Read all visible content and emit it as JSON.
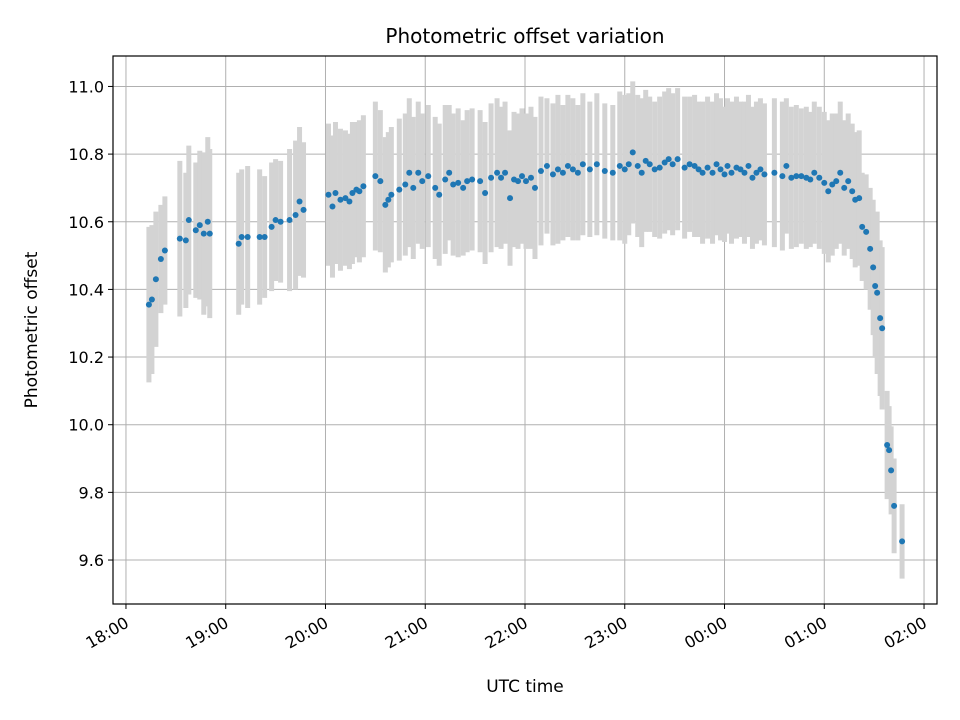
{
  "chart_data": {
    "type": "scatter",
    "title": "Photometric offset variation",
    "xlabel": "UTC time",
    "ylabel": "Photometric offset",
    "x_unit": "hours since 18:00 UTC",
    "xlim": [
      -0.13,
      8.13
    ],
    "ylim": [
      9.47,
      11.09
    ],
    "grid": true,
    "x_ticks": [
      {
        "value": 0,
        "label": "18:00"
      },
      {
        "value": 1,
        "label": "19:00"
      },
      {
        "value": 2,
        "label": "20:00"
      },
      {
        "value": 3,
        "label": "21:00"
      },
      {
        "value": 4,
        "label": "22:00"
      },
      {
        "value": 5,
        "label": "23:00"
      },
      {
        "value": 6,
        "label": "00:00"
      },
      {
        "value": 7,
        "label": "01:00"
      },
      {
        "value": 8,
        "label": "02:00"
      }
    ],
    "y_ticks": [
      {
        "value": 9.6,
        "label": "9.6"
      },
      {
        "value": 9.8,
        "label": "9.8"
      },
      {
        "value": 10.0,
        "label": "10.0"
      },
      {
        "value": 10.2,
        "label": "10.2"
      },
      {
        "value": 10.4,
        "label": "10.4"
      },
      {
        "value": 10.6,
        "label": "10.6"
      },
      {
        "value": 10.8,
        "label": "10.8"
      },
      {
        "value": 11.0,
        "label": "11.0"
      }
    ],
    "colors": {
      "points": "#1f77b4",
      "error_bars": "#d3d3d3",
      "grid": "#b0b0b0"
    },
    "points": [
      [
        0.23,
        10.355,
        0.23
      ],
      [
        0.26,
        10.37,
        0.22
      ],
      [
        0.3,
        10.43,
        0.2
      ],
      [
        0.35,
        10.49,
        0.16
      ],
      [
        0.39,
        10.515,
        0.16
      ],
      [
        0.54,
        10.55,
        0.23
      ],
      [
        0.6,
        10.545,
        0.2
      ],
      [
        0.63,
        10.605,
        0.22
      ],
      [
        0.7,
        10.575,
        0.2
      ],
      [
        0.74,
        10.59,
        0.22
      ],
      [
        0.78,
        10.565,
        0.24
      ],
      [
        0.82,
        10.6,
        0.25
      ],
      [
        0.84,
        10.565,
        0.25
      ],
      [
        1.13,
        10.535,
        0.21
      ],
      [
        1.16,
        10.555,
        0.2
      ],
      [
        1.22,
        10.555,
        0.21
      ],
      [
        1.34,
        10.555,
        0.2
      ],
      [
        1.39,
        10.555,
        0.18
      ],
      [
        1.46,
        10.585,
        0.19
      ],
      [
        1.5,
        10.605,
        0.18
      ],
      [
        1.55,
        10.6,
        0.18
      ],
      [
        1.64,
        10.605,
        0.21
      ],
      [
        1.7,
        10.62,
        0.22
      ],
      [
        1.74,
        10.66,
        0.22
      ],
      [
        1.78,
        10.635,
        0.2
      ],
      [
        2.03,
        10.68,
        0.21
      ],
      [
        2.07,
        10.645,
        0.21
      ],
      [
        2.1,
        10.685,
        0.21
      ],
      [
        2.15,
        10.665,
        0.21
      ],
      [
        2.2,
        10.67,
        0.2
      ],
      [
        2.24,
        10.66,
        0.2
      ],
      [
        2.27,
        10.685,
        0.21
      ],
      [
        2.31,
        10.695,
        0.2
      ],
      [
        2.34,
        10.69,
        0.21
      ],
      [
        2.38,
        10.705,
        0.21
      ],
      [
        2.5,
        10.735,
        0.22
      ],
      [
        2.55,
        10.72,
        0.21
      ],
      [
        2.6,
        10.65,
        0.2
      ],
      [
        2.63,
        10.665,
        0.2
      ],
      [
        2.66,
        10.68,
        0.2
      ],
      [
        2.74,
        10.695,
        0.21
      ],
      [
        2.8,
        10.71,
        0.21
      ],
      [
        2.84,
        10.745,
        0.22
      ],
      [
        2.88,
        10.7,
        0.21
      ],
      [
        2.93,
        10.745,
        0.21
      ],
      [
        2.97,
        10.72,
        0.2
      ],
      [
        3.03,
        10.735,
        0.21
      ],
      [
        3.1,
        10.7,
        0.21
      ],
      [
        3.14,
        10.68,
        0.21
      ],
      [
        3.2,
        10.725,
        0.22
      ],
      [
        3.24,
        10.745,
        0.2
      ],
      [
        3.28,
        10.71,
        0.21
      ],
      [
        3.33,
        10.715,
        0.22
      ],
      [
        3.38,
        10.7,
        0.2
      ],
      [
        3.42,
        10.72,
        0.21
      ],
      [
        3.47,
        10.725,
        0.21
      ],
      [
        3.55,
        10.72,
        0.21
      ],
      [
        3.6,
        10.685,
        0.21
      ],
      [
        3.66,
        10.73,
        0.22
      ],
      [
        3.72,
        10.745,
        0.22
      ],
      [
        3.76,
        10.73,
        0.21
      ],
      [
        3.8,
        10.745,
        0.21
      ],
      [
        3.85,
        10.67,
        0.2
      ],
      [
        3.89,
        10.725,
        0.2
      ],
      [
        3.93,
        10.72,
        0.2
      ],
      [
        3.97,
        10.735,
        0.2
      ],
      [
        4.01,
        10.72,
        0.2
      ],
      [
        4.06,
        10.73,
        0.21
      ],
      [
        4.1,
        10.7,
        0.21
      ],
      [
        4.16,
        10.75,
        0.22
      ],
      [
        4.22,
        10.765,
        0.2
      ],
      [
        4.28,
        10.74,
        0.21
      ],
      [
        4.33,
        10.755,
        0.22
      ],
      [
        4.38,
        10.745,
        0.2
      ],
      [
        4.43,
        10.765,
        0.21
      ],
      [
        4.48,
        10.755,
        0.21
      ],
      [
        4.53,
        10.745,
        0.2
      ],
      [
        4.58,
        10.77,
        0.21
      ],
      [
        4.65,
        10.755,
        0.2
      ],
      [
        4.72,
        10.77,
        0.21
      ],
      [
        4.8,
        10.75,
        0.2
      ],
      [
        4.88,
        10.745,
        0.2
      ],
      [
        4.95,
        10.765,
        0.22
      ],
      [
        5.0,
        10.755,
        0.22
      ],
      [
        5.04,
        10.77,
        0.21
      ],
      [
        5.08,
        10.805,
        0.21
      ],
      [
        5.13,
        10.765,
        0.21
      ],
      [
        5.17,
        10.745,
        0.22
      ],
      [
        5.21,
        10.78,
        0.21
      ],
      [
        5.25,
        10.77,
        0.2
      ],
      [
        5.3,
        10.755,
        0.2
      ],
      [
        5.35,
        10.76,
        0.21
      ],
      [
        5.4,
        10.775,
        0.21
      ],
      [
        5.44,
        10.785,
        0.21
      ],
      [
        5.48,
        10.77,
        0.21
      ],
      [
        5.53,
        10.785,
        0.21
      ],
      [
        5.6,
        10.76,
        0.21
      ],
      [
        5.65,
        10.77,
        0.2
      ],
      [
        5.7,
        10.765,
        0.21
      ],
      [
        5.74,
        10.755,
        0.2
      ],
      [
        5.78,
        10.745,
        0.21
      ],
      [
        5.83,
        10.76,
        0.21
      ],
      [
        5.88,
        10.745,
        0.21
      ],
      [
        5.92,
        10.77,
        0.21
      ],
      [
        5.96,
        10.755,
        0.21
      ],
      [
        6.0,
        10.74,
        0.2
      ],
      [
        6.03,
        10.765,
        0.2
      ],
      [
        6.07,
        10.745,
        0.21
      ],
      [
        6.12,
        10.76,
        0.21
      ],
      [
        6.16,
        10.755,
        0.2
      ],
      [
        6.2,
        10.745,
        0.21
      ],
      [
        6.24,
        10.765,
        0.21
      ],
      [
        6.28,
        10.73,
        0.21
      ],
      [
        6.32,
        10.745,
        0.21
      ],
      [
        6.36,
        10.755,
        0.21
      ],
      [
        6.4,
        10.74,
        0.21
      ],
      [
        6.5,
        10.745,
        0.22
      ],
      [
        6.58,
        10.735,
        0.22
      ],
      [
        6.62,
        10.765,
        0.2
      ],
      [
        6.67,
        10.73,
        0.21
      ],
      [
        6.72,
        10.735,
        0.21
      ],
      [
        6.77,
        10.735,
        0.2
      ],
      [
        6.82,
        10.73,
        0.21
      ],
      [
        6.86,
        10.725,
        0.2
      ],
      [
        6.9,
        10.745,
        0.21
      ],
      [
        6.95,
        10.73,
        0.21
      ],
      [
        7.0,
        10.715,
        0.21
      ],
      [
        7.04,
        10.69,
        0.21
      ],
      [
        7.08,
        10.71,
        0.21
      ],
      [
        7.12,
        10.72,
        0.2
      ],
      [
        7.16,
        10.745,
        0.21
      ],
      [
        7.2,
        10.7,
        0.2
      ],
      [
        7.24,
        10.72,
        0.2
      ],
      [
        7.28,
        10.69,
        0.2
      ],
      [
        7.31,
        10.665,
        0.2
      ],
      [
        7.35,
        10.67,
        0.2
      ],
      [
        7.38,
        10.585,
        0.16
      ],
      [
        7.42,
        10.57,
        0.17
      ],
      [
        7.46,
        10.52,
        0.18
      ],
      [
        7.49,
        10.465,
        0.2
      ],
      [
        7.51,
        10.41,
        0.21
      ],
      [
        7.53,
        10.39,
        0.24
      ],
      [
        7.56,
        10.315,
        0.23
      ],
      [
        7.58,
        10.285,
        0.24
      ],
      [
        7.63,
        9.94,
        0.16
      ],
      [
        7.65,
        9.925,
        0.13
      ],
      [
        7.67,
        9.865,
        0.13
      ],
      [
        7.7,
        9.76,
        0.14
      ],
      [
        7.78,
        9.655,
        0.11
      ]
    ]
  }
}
